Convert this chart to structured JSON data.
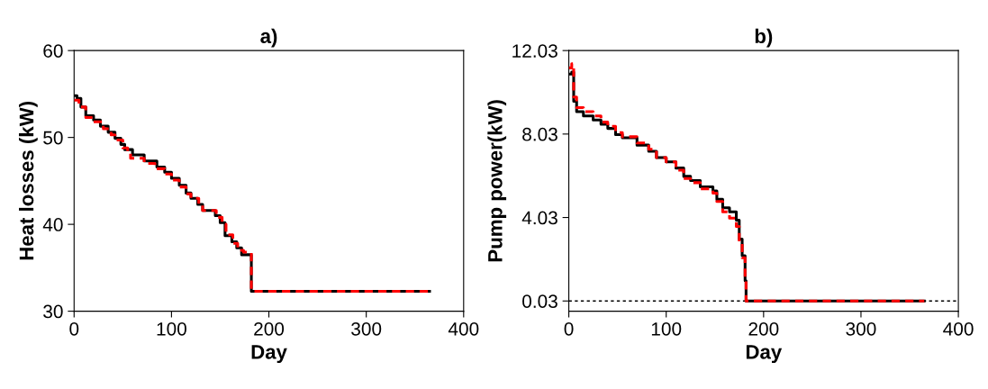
{
  "chart_data": [
    {
      "type": "step",
      "title": "a)",
      "xlabel": "Day",
      "ylabel": "Heat losses (kW)",
      "xlim": [
        0,
        400
      ],
      "xticks": [
        0,
        100,
        200,
        300,
        400
      ],
      "ylim": [
        30,
        60
      ],
      "yticks": [
        30,
        40,
        50,
        60
      ],
      "grid": false,
      "legend": false,
      "series": [
        {
          "color": "#000000",
          "line_style": "solid",
          "x": [
            0,
            3,
            7,
            12,
            20,
            27,
            35,
            42,
            48,
            52,
            60,
            72,
            85,
            93,
            100,
            108,
            115,
            120,
            127,
            132,
            145,
            150,
            155,
            162,
            167,
            172,
            182,
            365
          ],
          "values": [
            54.8,
            54.5,
            53.5,
            52.5,
            52.0,
            51.3,
            50.6,
            49.9,
            49.2,
            48.6,
            48.0,
            47.3,
            46.6,
            46.0,
            45.3,
            44.5,
            43.6,
            43.0,
            42.3,
            41.6,
            41.0,
            40.2,
            38.7,
            38.0,
            37.3,
            36.5,
            32.3,
            32.3
          ]
        },
        {
          "color": "#ff0000",
          "line_style": "dashed",
          "x": [
            0,
            5,
            12,
            20,
            30,
            38,
            42,
            50,
            55,
            58,
            72,
            83,
            93,
            100,
            108,
            115,
            120,
            128,
            132,
            146,
            152,
            156,
            163,
            168,
            174,
            182,
            365
          ],
          "values": [
            54.3,
            53.5,
            52.3,
            51.8,
            51.0,
            50.3,
            49.7,
            48.8,
            48.2,
            47.6,
            47.0,
            46.4,
            45.8,
            45.1,
            44.3,
            43.5,
            43.0,
            42.2,
            41.6,
            40.8,
            40.0,
            38.8,
            37.8,
            37.0,
            36.8,
            32.3,
            32.3
          ]
        }
      ]
    },
    {
      "type": "step",
      "title": "b)",
      "xlabel": "Day",
      "ylabel": "Pump power(kW)",
      "xlim": [
        0,
        400
      ],
      "xticks": [
        0,
        100,
        200,
        300,
        400
      ],
      "ylim": [
        -0.46,
        12.03
      ],
      "yticks": [
        0.03,
        4.03,
        8.03,
        12.03
      ],
      "grid": false,
      "legend": false,
      "ref_lines": [
        {
          "axis": "y",
          "value": 0.03,
          "color": "#000000",
          "line_style": "dotted"
        }
      ],
      "series": [
        {
          "color": "#000000",
          "line_style": "solid",
          "x": [
            0,
            3,
            5,
            8,
            15,
            25,
            33,
            40,
            48,
            55,
            70,
            82,
            90,
            100,
            110,
            118,
            125,
            135,
            148,
            152,
            158,
            165,
            172,
            175,
            178,
            181,
            182,
            365
          ],
          "values": [
            10.9,
            11.0,
            9.6,
            9.1,
            8.9,
            8.7,
            8.5,
            8.3,
            8.0,
            7.85,
            7.5,
            7.2,
            6.9,
            6.7,
            6.4,
            6.0,
            5.8,
            5.5,
            5.3,
            4.9,
            4.5,
            4.3,
            3.9,
            3.0,
            2.2,
            1.0,
            0.03,
            0.03
          ]
        },
        {
          "color": "#ff0000",
          "line_style": "dashed",
          "x": [
            0,
            3,
            5,
            8,
            15,
            25,
            33,
            40,
            48,
            55,
            70,
            82,
            90,
            100,
            110,
            118,
            125,
            135,
            148,
            152,
            158,
            165,
            172,
            175,
            178,
            181,
            182,
            365
          ],
          "values": [
            11.2,
            11.4,
            9.8,
            9.3,
            9.1,
            8.9,
            8.6,
            8.4,
            8.1,
            7.9,
            7.6,
            7.3,
            6.9,
            6.7,
            6.3,
            5.9,
            5.7,
            5.4,
            5.2,
            4.8,
            4.3,
            4.0,
            3.6,
            2.8,
            2.1,
            1.0,
            0.03,
            0.03
          ]
        }
      ]
    }
  ]
}
